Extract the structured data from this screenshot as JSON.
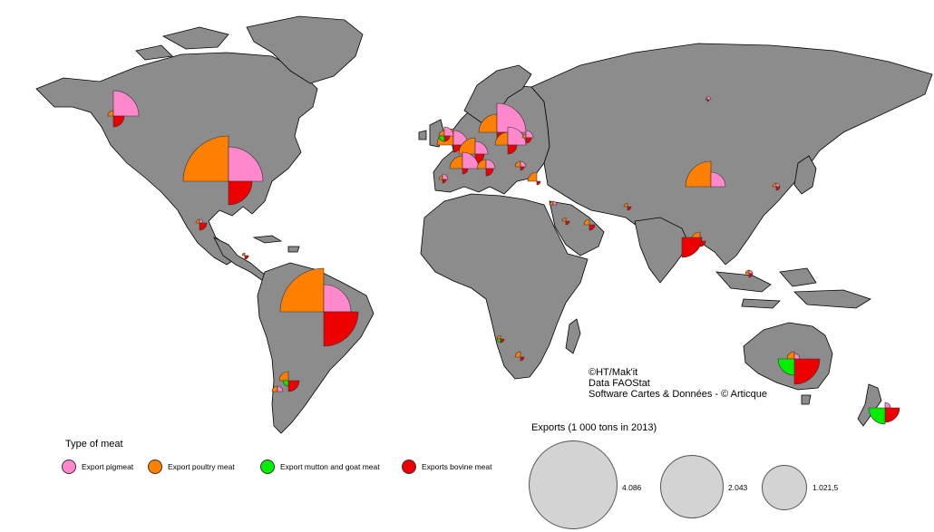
{
  "credits": [
    "©HT/Mak'it",
    "Data FAOStat",
    "Software Cartes & Données - © Articque"
  ],
  "legend": {
    "title": "Type of meat",
    "items": [
      {
        "label": "Export pigmeat",
        "color": "#ff88cc"
      },
      {
        "label": "Export   poultry meat",
        "color": "#ff8000"
      },
      {
        "label": "Export mutton and goat meat",
        "color": "#00ee00"
      },
      {
        "label": "Exports bovine meat",
        "color": "#ee0000"
      }
    ]
  },
  "size_legend": {
    "title": "Exports (1 000 tons in 2013)",
    "values": [
      "4.086",
      "2.043",
      "1.021,5"
    ]
  },
  "colors": {
    "land": "#8c8c8c",
    "pigmeat": "#ff88cc",
    "poultry": "#ff8000",
    "mutton_goat": "#00ee00",
    "bovine": "#ee0000"
  }
}
